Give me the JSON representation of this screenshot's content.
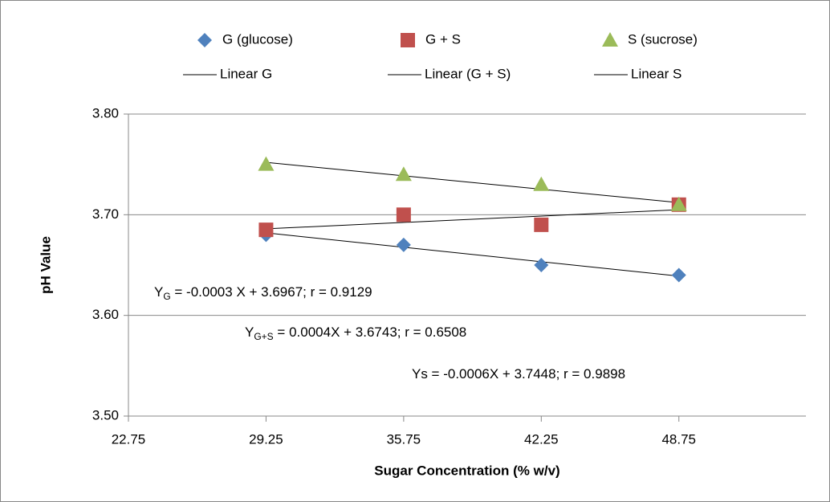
{
  "chart_data": {
    "type": "scatter",
    "x_label": "Sugar Concentration (% w/v)",
    "y_label": "pH Value",
    "x": [
      29.25,
      35.75,
      42.25,
      48.75
    ],
    "series": [
      {
        "name": "G (glucose)",
        "color": "#4f81bd",
        "marker": "diamond",
        "values": [
          3.68,
          3.67,
          3.65,
          3.64
        ]
      },
      {
        "name": "G + S",
        "color": "#c0504d",
        "marker": "square",
        "values": [
          3.685,
          3.7,
          3.69,
          3.71
        ]
      },
      {
        "name": "S (sucrose)",
        "color": "#9bbb59",
        "marker": "triangle",
        "values": [
          3.75,
          3.74,
          3.73,
          3.71
        ]
      }
    ],
    "trendlines": [
      {
        "name": "Linear G",
        "color": "#000000",
        "x": [
          29.25,
          48.75
        ],
        "values": [
          3.682,
          3.639
        ]
      },
      {
        "name": "Linear (G + S)",
        "color": "#000000",
        "x": [
          29.25,
          48.75
        ],
        "values": [
          3.686,
          3.705
        ]
      },
      {
        "name": "Linear S",
        "color": "#000000",
        "x": [
          29.25,
          48.75
        ],
        "values": [
          3.752,
          3.712
        ]
      }
    ],
    "annotations": [
      {
        "base": "Y",
        "sub": "G",
        "rest": " = -0.0003 X + 3.6967;  r = 0.9129"
      },
      {
        "base": "Y",
        "sub": "G+S",
        "rest": " = 0.0004X + 3.6743;  r = 0.6508"
      },
      {
        "base": "Ys = -0.0006X + 3.7448;  r = 0.9898"
      }
    ],
    "xlim": [
      22.75,
      54.75
    ],
    "xticks": [
      22.75,
      29.25,
      35.75,
      42.25,
      48.75
    ],
    "ylim": [
      3.5,
      3.8
    ],
    "yticks": [
      {
        "value": 3.5,
        "label": "3.50"
      },
      {
        "value": 3.6,
        "label": "3.60"
      },
      {
        "value": 3.7,
        "label": "3.70"
      },
      {
        "value": 3.8,
        "label": "3.80"
      }
    ],
    "grid": true,
    "legend": "top"
  }
}
